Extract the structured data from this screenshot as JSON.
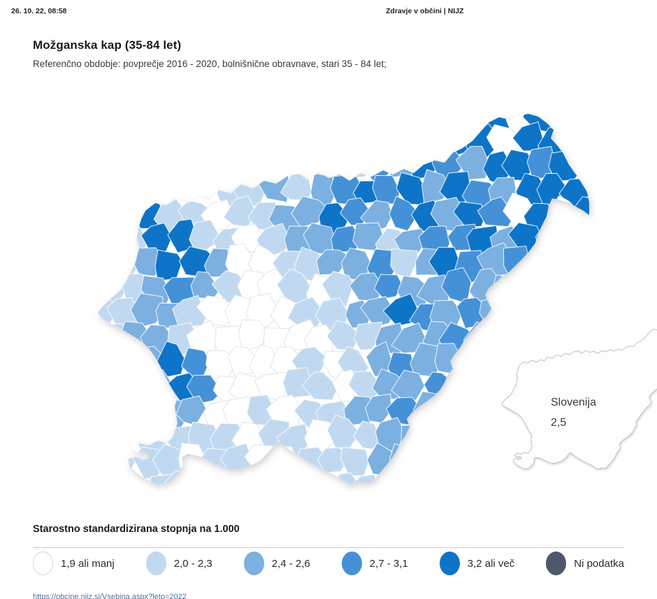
{
  "header": {
    "datetime": "26. 10. 22, 08:58",
    "site": "Zdravje v občini | NIJZ"
  },
  "title": "Možganska kap (35-84 let)",
  "subtitle": "Referenčno obdobje: povprečje 2016 - 2020, bolnišnične obravnave, stari 35 - 84 let;",
  "inset": {
    "label": "Slovenija",
    "value": "2,5"
  },
  "legend": {
    "title": "Starostno standardizirana stopnja na 1.000",
    "items": [
      {
        "label": "1,9 ali manj",
        "color": "#ffffff"
      },
      {
        "label": "2,0 - 2,3",
        "color": "#c1d9f0"
      },
      {
        "label": "2,4 - 2,6",
        "color": "#7bb0e0"
      },
      {
        "label": "2,7 - 3,1",
        "color": "#4591d7"
      },
      {
        "label": "3,2 ali več",
        "color": "#0e74c8"
      },
      {
        "label": "Ni podatka",
        "color": "#4d5868"
      }
    ]
  },
  "footer": {
    "url": "https://obcine.nijz.si/Vsebina.aspx?leto=2022"
  },
  "map": {
    "measure": "Starostno standardizirana stopnja na 1.000",
    "national_value": "2,5",
    "palette": [
      "#ffffff",
      "#c1d9f0",
      "#7bb0e0",
      "#4591d7",
      "#0e74c8"
    ],
    "nodata_color": "#4d5868",
    "grid": [
      "xxxxxxxxxxxxxxxxx4044x",
      "xxxxxxxxxxxxxx34404444",
      "xxxxxxxxx1213243244344",
      "xxxxx11212343424324444",
      "xx41101122432342430404",
      "x14411012232123342434x",
      "x124420011223124323xxx",
      "112321001012322322xxxx",
      "112210000112243232xxxx",
      "122100000011222323xxxx",
      "x1243000010123222xxxxx",
      "xx243000110122321xxxxx",
      "xx12200101122322xxxxxx",
      "xx11110110112232xxxxxx",
      "x11101100111222xxxxxxx",
      "xx111xx11x1122xxxxxxxx"
    ]
  }
}
